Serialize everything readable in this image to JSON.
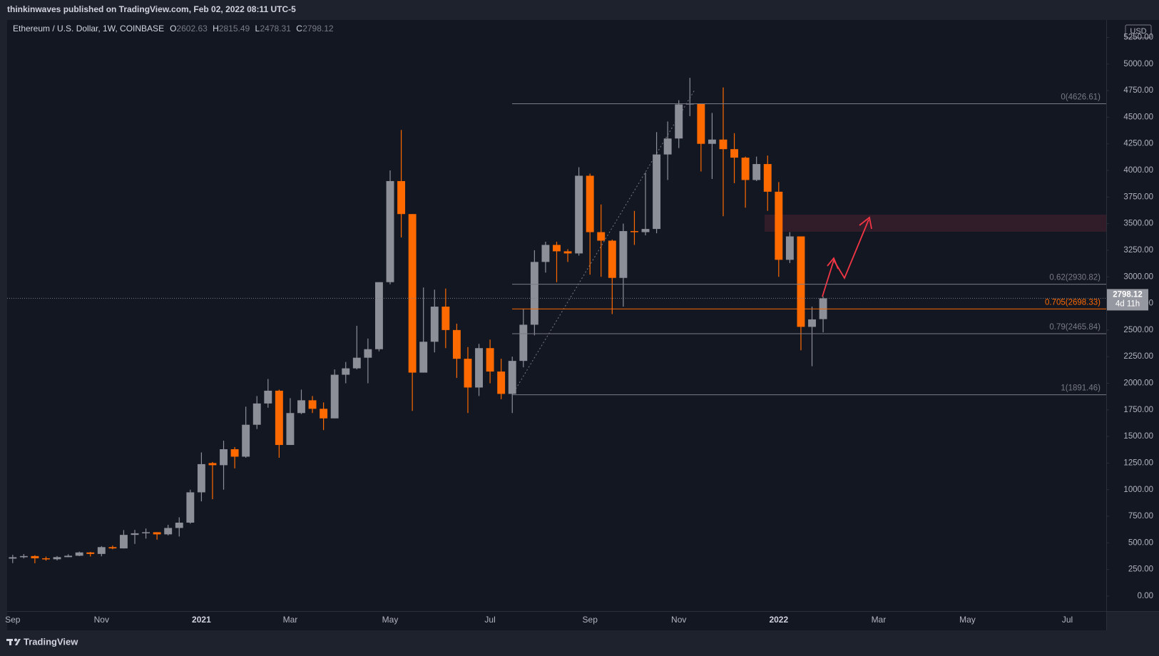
{
  "header": {
    "publisher": "thinkinwaves published on TradingView.com, Feb 02, 2022 08:11 UTC-5"
  },
  "footer": {
    "brand": "TradingView"
  },
  "chart_data": {
    "type": "candlestick",
    "title": "Ethereum / U.S. Dollar, 1W, COINBASE",
    "ohlc_labels": [
      "O",
      "H",
      "L",
      "C"
    ],
    "currency": "USD",
    "countdown": "4d 11h",
    "up_color": "#8c8f97",
    "down_color": "#ff6a00",
    "categories": [
      "Sep",
      null,
      null,
      null,
      null,
      null,
      null,
      null,
      "Nov",
      null,
      null,
      null,
      null,
      null,
      null,
      null,
      null,
      "2021",
      null,
      null,
      null,
      null,
      null,
      null,
      null,
      "Mar",
      null,
      null,
      null,
      null,
      null,
      null,
      null,
      null,
      "May",
      null,
      null,
      null,
      null,
      null,
      null,
      null,
      null,
      "Jul",
      null,
      null,
      null,
      null,
      null,
      null,
      null,
      null,
      "Sep",
      null,
      null,
      null,
      null,
      null,
      null,
      null,
      "Nov",
      null,
      null,
      null,
      null,
      null,
      null,
      null,
      null,
      "2022",
      null,
      null,
      null,
      null,
      null,
      null,
      null,
      null,
      "Mar",
      null,
      null,
      null,
      null,
      null,
      null,
      null,
      "May",
      null,
      null,
      null,
      null,
      null,
      null,
      null,
      null,
      "Jul",
      null,
      null,
      null
    ],
    "open": [
      352,
      365,
      376,
      355,
      346,
      366,
      379,
      410,
      396,
      460,
      448,
      575,
      590,
      600,
      580,
      640,
      690,
      975,
      1250,
      1230,
      1380,
      1310,
      1610,
      1810,
      1930,
      1420,
      1720,
      1840,
      1760,
      1670,
      2080,
      2140,
      2240,
      2320,
      2950,
      3900,
      3590,
      2100,
      2390,
      2720,
      2500,
      2230,
      1960,
      2330,
      2110,
      1900,
      2210,
      2550,
      3140,
      3300,
      3240,
      3220,
      3950,
      3420,
      3340,
      2990,
      3430,
      3420,
      3450,
      4150,
      4300,
      4620,
      4630,
      4250,
      4290,
      4200,
      4120,
      3910,
      4060,
      3800,
      3160,
      3380,
      2530,
      2602.63,
      null,
      null,
      null,
      null,
      null,
      null,
      null,
      null,
      null,
      null,
      null,
      null,
      null,
      null,
      null,
      null,
      null,
      null,
      null,
      null,
      null,
      null,
      null,
      null,
      null
    ],
    "high": [
      388,
      395,
      384,
      371,
      376,
      393,
      418,
      415,
      470,
      475,
      620,
      622,
      635,
      600,
      670,
      740,
      1000,
      1350,
      1260,
      1460,
      1400,
      1780,
      1880,
      2040,
      1940,
      1860,
      1940,
      1880,
      1820,
      2130,
      2200,
      2540,
      2420,
      2950,
      4000,
      4380,
      3590,
      2900,
      2880,
      2890,
      2560,
      2340,
      2370,
      2410,
      2230,
      2250,
      2700,
      3250,
      3330,
      3330,
      3260,
      4030,
      3970,
      3680,
      3350,
      3500,
      3620,
      3980,
      4360,
      4460,
      4660,
      4870,
      4630,
      4540,
      4780,
      4350,
      4130,
      4130,
      4140,
      3890,
      3420,
      3380,
      2720,
      2815.49,
      null,
      null,
      null,
      null,
      null,
      null,
      null,
      null,
      null,
      null,
      null,
      null,
      null,
      null,
      null,
      null,
      null,
      null,
      null,
      null,
      null,
      null,
      null,
      null,
      null
    ],
    "low": [
      310,
      354,
      308,
      333,
      335,
      365,
      375,
      372,
      374,
      440,
      447,
      490,
      540,
      530,
      570,
      560,
      680,
      890,
      910,
      1000,
      1200,
      1300,
      1570,
      1770,
      1300,
      1420,
      1710,
      1720,
      1560,
      1670,
      2000,
      2130,
      2000,
      2300,
      2930,
      3370,
      1740,
      2100,
      2290,
      2330,
      2050,
      1720,
      1880,
      2000,
      1850,
      1720,
      2150,
      2450,
      3040,
      2950,
      3140,
      3200,
      3020,
      3000,
      2650,
      2720,
      3300,
      3390,
      3410,
      3910,
      4210,
      4510,
      3990,
      3920,
      3570,
      3880,
      3650,
      3900,
      3620,
      3000,
      3130,
      2310,
      2160,
      2478.31,
      null,
      null,
      null,
      null,
      null,
      null,
      null,
      null,
      null,
      null,
      null,
      null,
      null,
      null,
      null,
      null,
      null,
      null,
      null,
      null,
      null,
      null,
      null,
      null,
      null
    ],
    "close": [
      365,
      376,
      355,
      346,
      366,
      379,
      410,
      396,
      460,
      448,
      575,
      590,
      600,
      580,
      640,
      690,
      975,
      1240,
      1230,
      1380,
      1310,
      1610,
      1810,
      1930,
      1420,
      1720,
      1840,
      1760,
      1670,
      2080,
      2140,
      2240,
      2320,
      2950,
      3900,
      3590,
      2100,
      2390,
      2720,
      2500,
      2230,
      1960,
      2330,
      2110,
      1900,
      2210,
      2550,
      3140,
      3300,
      3240,
      3220,
      3950,
      3420,
      3340,
      2990,
      3430,
      3420,
      3450,
      4150,
      4300,
      4620,
      4630,
      4250,
      4290,
      4200,
      4120,
      3910,
      4060,
      3800,
      3160,
      3380,
      2530,
      2600,
      2798.12,
      null,
      null,
      null,
      null,
      null,
      null,
      null,
      null,
      null,
      null,
      null,
      null,
      null,
      null,
      null,
      null,
      null,
      null,
      null,
      null,
      null,
      null,
      null,
      null,
      null
    ],
    "ylim": [
      -141,
      5414
    ],
    "yticks": [
      {
        "value": 0,
        "label": "0.00"
      },
      {
        "value": 250,
        "label": "250.00"
      },
      {
        "value": 500,
        "label": "500.00"
      },
      {
        "value": 750,
        "label": "750.00"
      },
      {
        "value": 1000,
        "label": "1000.00"
      },
      {
        "value": 1250,
        "label": "1250.00"
      },
      {
        "value": 1500,
        "label": "1500.00"
      },
      {
        "value": 1750,
        "label": "1750.00"
      },
      {
        "value": 2000,
        "label": "2000.00"
      },
      {
        "value": 2250,
        "label": "2250.00"
      },
      {
        "value": 2500,
        "label": "2500.00"
      },
      {
        "value": 2750,
        "label": "2750.00"
      },
      {
        "value": 3000,
        "label": "3000.00"
      },
      {
        "value": 3250,
        "label": "3250.00"
      },
      {
        "value": 3500,
        "label": "3500.00"
      },
      {
        "value": 3750,
        "label": "3750.00"
      },
      {
        "value": 4000,
        "label": "4000.00"
      },
      {
        "value": 4250,
        "label": "4250.00"
      },
      {
        "value": 4500,
        "label": "4500.00"
      },
      {
        "value": 4750,
        "label": "4750.00"
      },
      {
        "value": 5000,
        "label": "5000.00"
      },
      {
        "value": 5250,
        "label": "5250.00"
      }
    ],
    "fib_levels": [
      {
        "value": 4626.61,
        "label": "0(4626.61)",
        "color": "#787b86"
      },
      {
        "value": 2930.82,
        "label": "0.62(2930.82)",
        "color": "#787b86"
      },
      {
        "value": 2698.33,
        "label": "0.705(2698.33)",
        "color": "#ff6a00"
      },
      {
        "value": 2465.84,
        "label": "0.79(2465.84)",
        "color": "#787b86"
      },
      {
        "value": 1891.46,
        "label": "1(1891.46)",
        "color": "#787b86"
      }
    ],
    "grid": false
  }
}
